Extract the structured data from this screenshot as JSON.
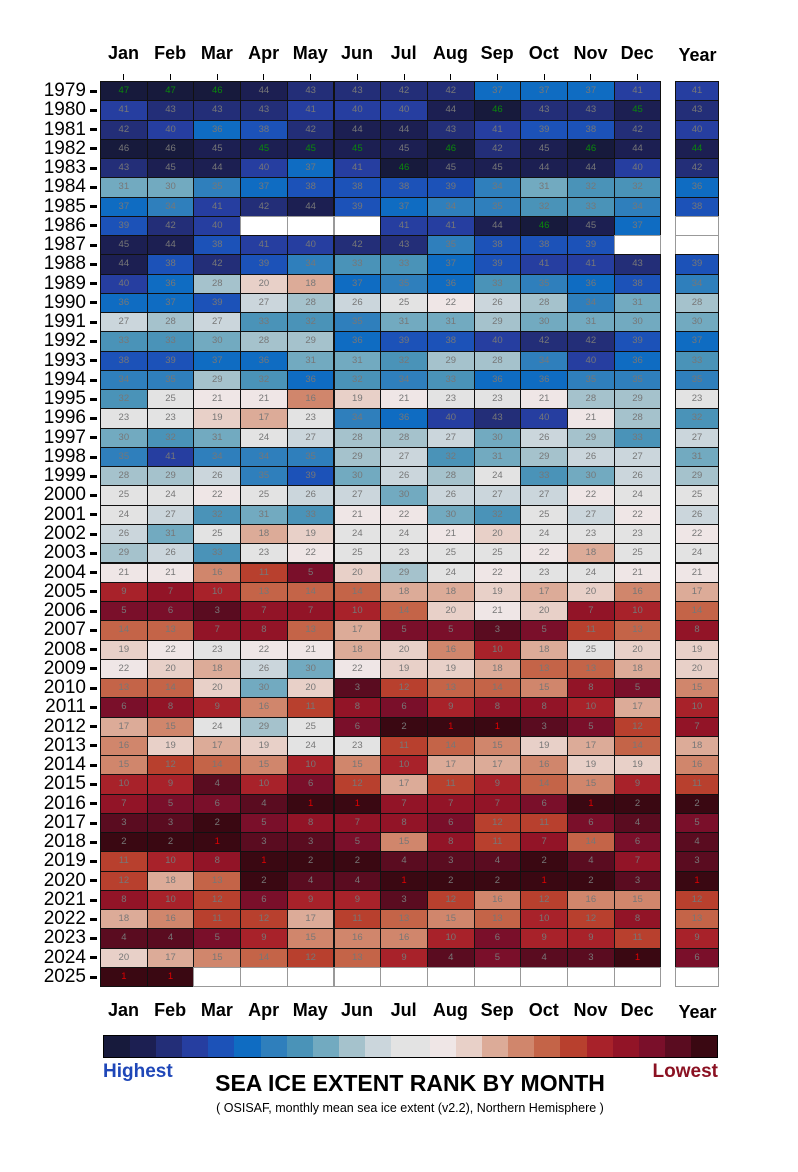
{
  "chart_data": {
    "type": "heatmap",
    "title": "SEA ICE EXTENT RANK BY MONTH",
    "subtitle": "( OSISAF, monthly mean sea ice extent (v2.2), Northern Hemisphere )",
    "legend": {
      "low_label": "Highest",
      "high_label": "Lowest",
      "low_color": "#1f47b8",
      "high_color": "#8b1122"
    },
    "columns": [
      "Jan",
      "Feb",
      "Mar",
      "Apr",
      "May",
      "Jun",
      "Jul",
      "Aug",
      "Sep",
      "Oct",
      "Nov",
      "Dec"
    ],
    "year_column_label": "Year",
    "rows": [
      {
        "year": "1979",
        "values": [
          47,
          47,
          46,
          44,
          43,
          43,
          42,
          42,
          37,
          37,
          37,
          41
        ],
        "annual": 41
      },
      {
        "year": "1980",
        "values": [
          41,
          43,
          43,
          43,
          41,
          40,
          40,
          44,
          46,
          43,
          43,
          45
        ],
        "annual": 43
      },
      {
        "year": "1981",
        "values": [
          42,
          40,
          36,
          38,
          42,
          44,
          44,
          43,
          41,
          39,
          38,
          42
        ],
        "annual": 40
      },
      {
        "year": "1982",
        "values": [
          46,
          46,
          45,
          45,
          45,
          45,
          45,
          46,
          42,
          45,
          46,
          44
        ],
        "annual": 44
      },
      {
        "year": "1983",
        "values": [
          43,
          45,
          44,
          40,
          37,
          41,
          46,
          45,
          45,
          44,
          44,
          40
        ],
        "annual": 42
      },
      {
        "year": "1984",
        "values": [
          31,
          30,
          35,
          37,
          38,
          38,
          38,
          39,
          34,
          31,
          32,
          32
        ],
        "annual": 36
      },
      {
        "year": "1985",
        "values": [
          37,
          34,
          41,
          42,
          44,
          39,
          37,
          34,
          35,
          32,
          33,
          34
        ],
        "annual": 38
      },
      {
        "year": "1986",
        "values": [
          39,
          42,
          40,
          null,
          null,
          null,
          41,
          41,
          44,
          46,
          45,
          37
        ],
        "annual": null
      },
      {
        "year": "1987",
        "values": [
          45,
          44,
          38,
          41,
          40,
          42,
          43,
          35,
          38,
          38,
          39,
          null
        ],
        "annual": null
      },
      {
        "year": "1988",
        "values": [
          44,
          38,
          42,
          39,
          34,
          33,
          33,
          37,
          39,
          41,
          41,
          43
        ],
        "annual": 39
      },
      {
        "year": "1989",
        "values": [
          40,
          36,
          28,
          20,
          18,
          37,
          35,
          36,
          33,
          35,
          36,
          38
        ],
        "annual": 34
      },
      {
        "year": "1990",
        "values": [
          36,
          37,
          39,
          27,
          28,
          26,
          25,
          22,
          26,
          28,
          34,
          31
        ],
        "annual": 28
      },
      {
        "year": "1991",
        "values": [
          27,
          28,
          27,
          33,
          32,
          35,
          31,
          31,
          29,
          30,
          31,
          30
        ],
        "annual": 30
      },
      {
        "year": "1992",
        "values": [
          33,
          33,
          30,
          28,
          29,
          36,
          39,
          38,
          40,
          42,
          42,
          39
        ],
        "annual": 37
      },
      {
        "year": "1993",
        "values": [
          38,
          39,
          37,
          36,
          31,
          31,
          32,
          29,
          28,
          34,
          40,
          36
        ],
        "annual": 33
      },
      {
        "year": "1994",
        "values": [
          34,
          35,
          29,
          32,
          36,
          32,
          34,
          33,
          36,
          36,
          35,
          35
        ],
        "annual": 35
      },
      {
        "year": "1995",
        "values": [
          32,
          25,
          21,
          21,
          16,
          19,
          21,
          23,
          23,
          21,
          28,
          29
        ],
        "annual": 23
      },
      {
        "year": "1996",
        "values": [
          23,
          23,
          19,
          17,
          23,
          34,
          36,
          40,
          43,
          40,
          21,
          28
        ],
        "annual": 32
      },
      {
        "year": "1997",
        "values": [
          30,
          32,
          31,
          24,
          27,
          28,
          28,
          27,
          30,
          26,
          29,
          33
        ],
        "annual": 27
      },
      {
        "year": "1998",
        "values": [
          35,
          41,
          34,
          34,
          35,
          29,
          27,
          32,
          31,
          29,
          26,
          27
        ],
        "annual": 31
      },
      {
        "year": "1999",
        "values": [
          28,
          29,
          26,
          35,
          39,
          30,
          26,
          28,
          24,
          33,
          30,
          26
        ],
        "annual": 29
      },
      {
        "year": "2000",
        "values": [
          25,
          24,
          22,
          25,
          26,
          27,
          30,
          26,
          27,
          27,
          22,
          24
        ],
        "annual": 25
      },
      {
        "year": "2001",
        "values": [
          24,
          27,
          32,
          31,
          33,
          21,
          22,
          30,
          32,
          25,
          27,
          22
        ],
        "annual": 26
      },
      {
        "year": "2002",
        "values": [
          26,
          31,
          25,
          18,
          19,
          24,
          24,
          21,
          20,
          24,
          23,
          23
        ],
        "annual": 22
      },
      {
        "year": "2003",
        "values": [
          29,
          26,
          33,
          23,
          22,
          25,
          23,
          25,
          25,
          22,
          18,
          25
        ],
        "annual": 24
      },
      {
        "year": "2004",
        "values": [
          21,
          21,
          16,
          11,
          5,
          20,
          29,
          24,
          22,
          23,
          24,
          21
        ],
        "annual": 21
      },
      {
        "year": "2005",
        "values": [
          9,
          7,
          10,
          13,
          14,
          14,
          18,
          18,
          19,
          17,
          20,
          16
        ],
        "annual": 17
      },
      {
        "year": "2006",
        "values": [
          5,
          6,
          3,
          7,
          7,
          10,
          14,
          20,
          21,
          20,
          7,
          10
        ],
        "annual": 14
      },
      {
        "year": "2007",
        "values": [
          14,
          13,
          7,
          8,
          13,
          17,
          5,
          5,
          3,
          5,
          11,
          13
        ],
        "annual": 8
      },
      {
        "year": "2008",
        "values": [
          19,
          22,
          23,
          22,
          21,
          18,
          20,
          16,
          10,
          18,
          25,
          20
        ],
        "annual": 19
      },
      {
        "year": "2009",
        "values": [
          22,
          20,
          18,
          26,
          30,
          22,
          19,
          19,
          18,
          13,
          13,
          18
        ],
        "annual": 20
      },
      {
        "year": "2010",
        "values": [
          13,
          14,
          20,
          30,
          20,
          3,
          12,
          13,
          14,
          15,
          8,
          5
        ],
        "annual": 15
      },
      {
        "year": "2011",
        "values": [
          6,
          8,
          9,
          16,
          11,
          8,
          6,
          9,
          8,
          8,
          10,
          17
        ],
        "annual": 10
      },
      {
        "year": "2012",
        "values": [
          17,
          15,
          24,
          29,
          25,
          6,
          2,
          1,
          1,
          3,
          5,
          12
        ],
        "annual": 7
      },
      {
        "year": "2013",
        "values": [
          16,
          19,
          17,
          19,
          24,
          23,
          11,
          14,
          15,
          19,
          17,
          14
        ],
        "annual": 18
      },
      {
        "year": "2014",
        "values": [
          15,
          12,
          14,
          15,
          10,
          15,
          10,
          17,
          17,
          16,
          19,
          19
        ],
        "annual": 16
      },
      {
        "year": "2015",
        "values": [
          10,
          9,
          4,
          10,
          6,
          12,
          17,
          11,
          9,
          14,
          15,
          9
        ],
        "annual": 11
      },
      {
        "year": "2016",
        "values": [
          7,
          5,
          6,
          4,
          1,
          1,
          7,
          7,
          7,
          6,
          1,
          2
        ],
        "annual": 2
      },
      {
        "year": "2017",
        "values": [
          3,
          3,
          2,
          5,
          8,
          7,
          8,
          6,
          12,
          11,
          6,
          4
        ],
        "annual": 5
      },
      {
        "year": "2018",
        "values": [
          2,
          2,
          1,
          3,
          3,
          5,
          15,
          8,
          11,
          7,
          14,
          6
        ],
        "annual": 4
      },
      {
        "year": "2019",
        "values": [
          11,
          10,
          8,
          1,
          2,
          2,
          4,
          3,
          4,
          2,
          4,
          7
        ],
        "annual": 3
      },
      {
        "year": "2020",
        "values": [
          12,
          18,
          13,
          2,
          4,
          4,
          1,
          2,
          2,
          1,
          2,
          3
        ],
        "annual": 1
      },
      {
        "year": "2021",
        "values": [
          8,
          10,
          12,
          6,
          9,
          9,
          3,
          12,
          16,
          12,
          16,
          15
        ],
        "annual": 12
      },
      {
        "year": "2022",
        "values": [
          18,
          16,
          11,
          12,
          17,
          11,
          13,
          15,
          13,
          10,
          12,
          8
        ],
        "annual": 13
      },
      {
        "year": "2023",
        "values": [
          4,
          4,
          5,
          9,
          15,
          16,
          16,
          10,
          6,
          9,
          9,
          11
        ],
        "annual": 9
      },
      {
        "year": "2024",
        "values": [
          20,
          17,
          15,
          14,
          12,
          13,
          9,
          4,
          5,
          4,
          3,
          1
        ],
        "annual": 6
      },
      {
        "year": "2025",
        "values": [
          1,
          1,
          null,
          null,
          null,
          null,
          null,
          null,
          null,
          null,
          null,
          null
        ],
        "annual": null
      }
    ],
    "colorscale": [
      "#3a0812",
      "#5a0c20",
      "#7a0f2a",
      "#921427",
      "#a8222a",
      "#b8402e",
      "#c46448",
      "#d0866c",
      "#dcab98",
      "#e8d0c8",
      "#efe6e6",
      "#e3e3e3",
      "#cbd6dc",
      "#a5c2cc",
      "#72aac0",
      "#4a93b8",
      "#2f7fbc",
      "#0f6cc2",
      "#1c52b8",
      "#263ea0",
      "#232e78",
      "#1c1f52",
      "#171a3c"
    ],
    "rank_text_colors": {
      "normal": "#777777",
      "lowest": "#e00000",
      "highest": "#0a8a0a"
    }
  }
}
